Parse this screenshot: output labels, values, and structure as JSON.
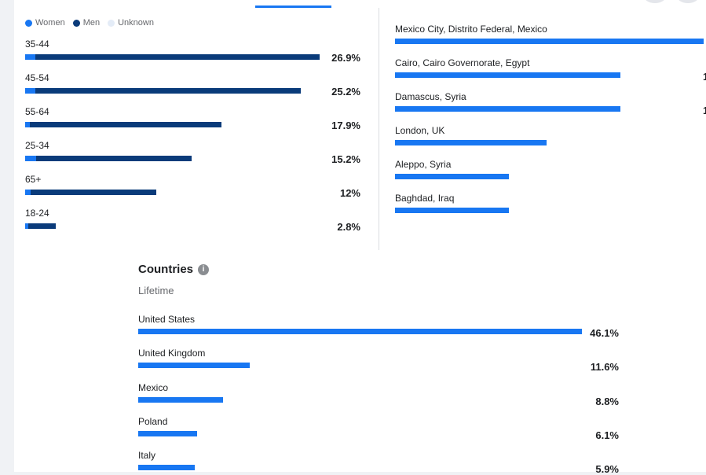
{
  "legend": [
    {
      "label": "Women",
      "color": "#1877f2"
    },
    {
      "label": "Men",
      "color": "#0a3b7a"
    },
    {
      "label": "Unknown",
      "color": "#e4ecf7"
    }
  ],
  "info_icon": "info-icon",
  "chart_data": [
    {
      "type": "bar",
      "stacked": true,
      "orientation": "horizontal",
      "categories": [
        "35-44",
        "45-54",
        "55-64",
        "25-34",
        "65+",
        "18-24"
      ],
      "series": [
        {
          "name": "Women",
          "values": [
            0.9,
            0.9,
            0.4,
            1.0,
            0.5,
            0.3
          ],
          "color": "#1877f2"
        },
        {
          "name": "Men",
          "values": [
            26.0,
            24.3,
            17.5,
            14.2,
            11.5,
            2.5
          ],
          "color": "#0a3b7a"
        }
      ],
      "totals": [
        "26.9%",
        "25.2%",
        "17.9%",
        "15.2%",
        "12%",
        "2.8%"
      ],
      "xlim": [
        0,
        26.9
      ]
    },
    {
      "type": "bar",
      "orientation": "horizontal",
      "categories": [
        "Mexico City, Distrito Federal, Mexico",
        "Cairo, Cairo Governorate, Egypt",
        "Damascus, Syria",
        "London, UK",
        "Aleppo, Syria",
        "Baghdad, Iraq"
      ],
      "values": [
        100,
        73,
        73,
        49,
        37,
        37
      ],
      "value_labels": [
        "",
        "1",
        "1",
        "",
        "",
        ""
      ],
      "color": "#1877f2",
      "xlim": [
        0,
        100
      ]
    },
    {
      "type": "bar",
      "orientation": "horizontal",
      "title": "Countries",
      "subtitle": "Lifetime",
      "categories": [
        "United States",
        "United Kingdom",
        "Mexico",
        "Poland",
        "Italy"
      ],
      "values": [
        46.1,
        11.6,
        8.8,
        6.1,
        5.9
      ],
      "value_labels": [
        "46.1%",
        "11.6%",
        "8.8%",
        "6.1%",
        "5.9%"
      ],
      "color": "#1877f2",
      "xlim": [
        0,
        46.1
      ]
    }
  ]
}
